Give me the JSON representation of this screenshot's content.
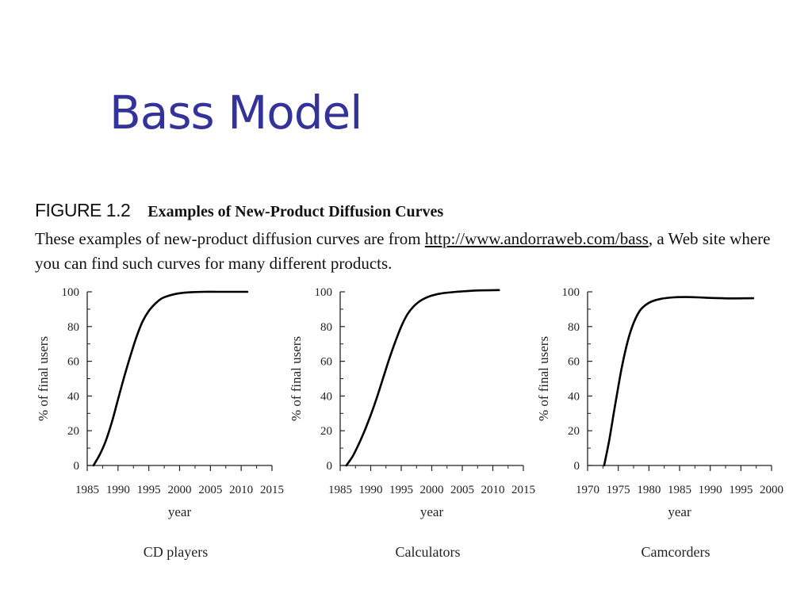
{
  "slide": {
    "title": "Bass Model"
  },
  "figure": {
    "label": "FIGURE 1.2",
    "title": "Examples of New-Product Diffusion Curves",
    "caption_pre": "These examples of new-product diffusion curves are from ",
    "caption_link": "http://www.andorraweb.com/bass",
    "caption_post": ", a Web site where you can find such curves for many different products."
  },
  "colors": {
    "title": "#333399",
    "curve": "#000000"
  },
  "chart_data": [
    {
      "type": "line",
      "title": "CD players",
      "xlabel": "year",
      "ylabel": "% of final users",
      "xlim": [
        1985,
        2015
      ],
      "ylim": [
        0,
        100
      ],
      "xticks": [
        1985,
        1990,
        1995,
        2000,
        2005,
        2010,
        2015
      ],
      "yticks": [
        0,
        20,
        40,
        60,
        80,
        100
      ],
      "x": [
        1986,
        1987,
        1988,
        1989,
        1990,
        1991,
        1992,
        1993,
        1994,
        1995,
        1996,
        1997,
        1998,
        1999,
        2000,
        2001,
        2002,
        2004,
        2006,
        2008,
        2011
      ],
      "y": [
        0,
        6,
        14,
        25,
        38,
        51,
        63,
        74,
        83,
        89,
        93,
        96,
        97.5,
        98.5,
        99.2,
        99.6,
        99.8,
        100,
        100,
        100,
        100
      ]
    },
    {
      "type": "line",
      "title": "Calculators",
      "xlabel": "year",
      "ylabel": "% of final users",
      "xlim": [
        1985,
        2015
      ],
      "ylim": [
        0,
        100
      ],
      "xticks": [
        1985,
        1990,
        1995,
        2000,
        2005,
        2010,
        2015
      ],
      "yticks": [
        0,
        20,
        40,
        60,
        80,
        100
      ],
      "x": [
        1986,
        1987,
        1988,
        1989,
        1990,
        1991,
        1992,
        1993,
        1994,
        1995,
        1996,
        1997,
        1998,
        1999,
        2000,
        2001,
        2002,
        2004,
        2006,
        2008,
        2011
      ],
      "y": [
        0,
        5,
        12,
        20,
        29,
        39,
        50,
        61,
        71,
        80,
        87,
        91.5,
        94.5,
        96.5,
        97.8,
        98.7,
        99.3,
        100,
        100.5,
        100.8,
        101
      ]
    },
    {
      "type": "line",
      "title": "Camcorders",
      "xlabel": "year",
      "ylabel": "% of final users",
      "xlim": [
        1970,
        2000
      ],
      "ylim": [
        0,
        100
      ],
      "xticks": [
        1970,
        1975,
        1980,
        1985,
        1990,
        1995,
        2000
      ],
      "yticks": [
        0,
        20,
        40,
        60,
        80,
        100
      ],
      "x": [
        1972.7,
        1973.5,
        1974.5,
        1975.5,
        1976.5,
        1977.5,
        1978.5,
        1979.5,
        1980.5,
        1982,
        1984,
        1986,
        1988,
        1990,
        1992,
        1994,
        1997
      ],
      "y": [
        0,
        14,
        35,
        55,
        71,
        82,
        89,
        92.5,
        94.5,
        96,
        96.8,
        97,
        96.8,
        96.5,
        96.3,
        96.2,
        96.3
      ]
    }
  ]
}
